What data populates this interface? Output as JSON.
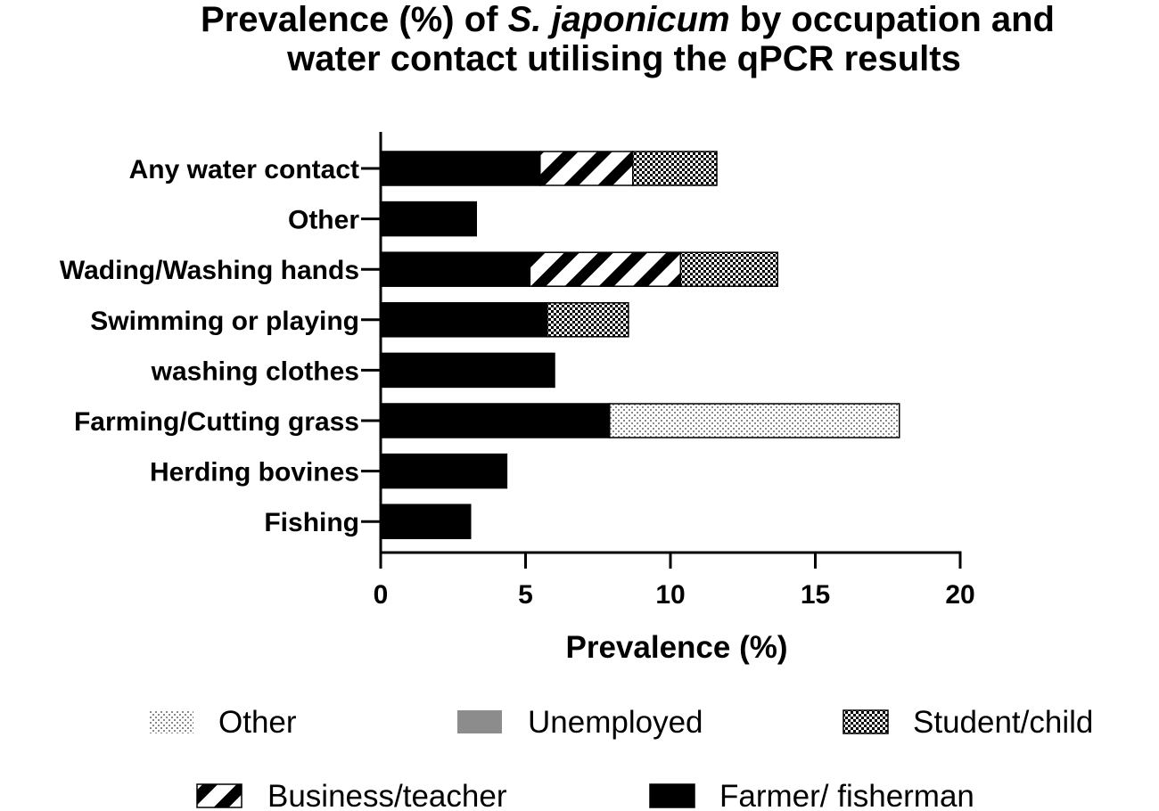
{
  "chart_data": {
    "type": "bar",
    "orientation": "horizontal",
    "stacked": true,
    "title": {
      "line1_before": "Prevalence (%) of ",
      "line1_species": "S. japonicum",
      "line1_after": " by occupation and",
      "line2": "water contact utilising the qPCR results"
    },
    "xlabel": "Prevalence (%)",
    "ylabel": "",
    "xlim": [
      0,
      20
    ],
    "xticks": [
      "0",
      "5",
      "10",
      "15",
      "20"
    ],
    "categories": [
      "Any water contact",
      "Other",
      "Wading/Washing hands",
      "Swimming or playing",
      "washing clothes",
      "Farming/Cutting grass",
      "Herding bovines",
      "Fishing"
    ],
    "series": [
      {
        "name": "Farmer/ fisherman",
        "pattern": "solid",
        "values": [
          5.5,
          3.3,
          5.15,
          5.75,
          6.0,
          7.9,
          4.35,
          3.1
        ]
      },
      {
        "name": "Business/teacher",
        "pattern": "diagonal-stripes",
        "values": [
          3.2,
          0,
          5.2,
          0,
          0,
          0,
          0,
          0
        ]
      },
      {
        "name": "Student/child",
        "pattern": "checkerboard",
        "values": [
          2.9,
          0,
          3.35,
          2.8,
          0,
          0,
          0,
          0
        ]
      },
      {
        "name": "Unemployed",
        "pattern": "gray",
        "values": [
          0,
          0,
          0,
          0,
          0,
          0,
          0,
          0
        ]
      },
      {
        "name": "Other",
        "pattern": "light-dots",
        "values": [
          0,
          0,
          0,
          0,
          0,
          10.0,
          0,
          0
        ]
      }
    ],
    "legend": {
      "placement": "bottom",
      "order": [
        "Other",
        "Unemployed",
        "Student/child",
        "Business/teacher",
        "Farmer/ fisherman"
      ],
      "labels": {
        "Other": "Other",
        "Unemployed": "Unemployed",
        "Student/child": "Student/child",
        "Business/teacher": "Business/teacher",
        "Farmer/ fisherman": "Farmer/ fisherman"
      }
    },
    "colors": {
      "solid": "#000000",
      "gray": "#8c8c8c",
      "background": "#ffffff"
    },
    "grid": false
  }
}
